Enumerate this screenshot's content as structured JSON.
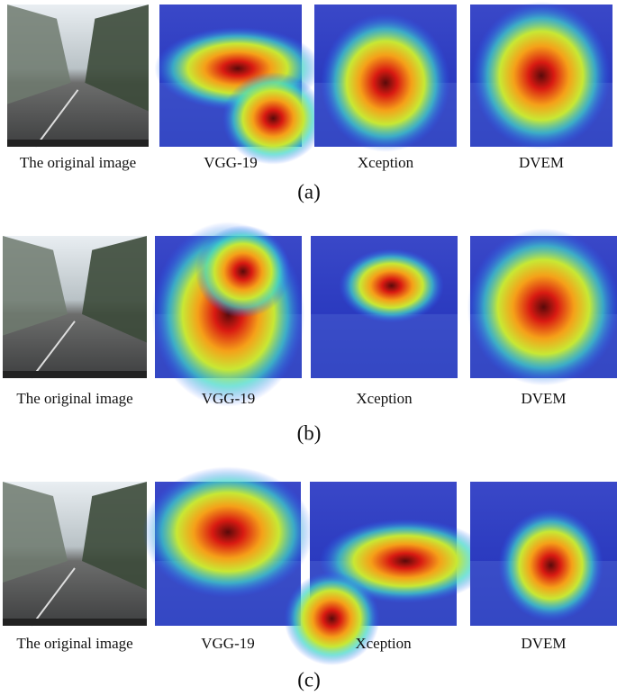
{
  "rows": [
    {
      "captions": [
        "The original image",
        "VGG-19",
        "Xception",
        "DVEM"
      ],
      "label": "(a)"
    },
    {
      "captions": [
        "The original image",
        "VGG-19",
        "Xception",
        "DVEM"
      ],
      "label": "(b)"
    },
    {
      "captions": [
        "The original image",
        "VGG-19",
        "Xception",
        "DVEM"
      ],
      "label": "(c)"
    }
  ]
}
